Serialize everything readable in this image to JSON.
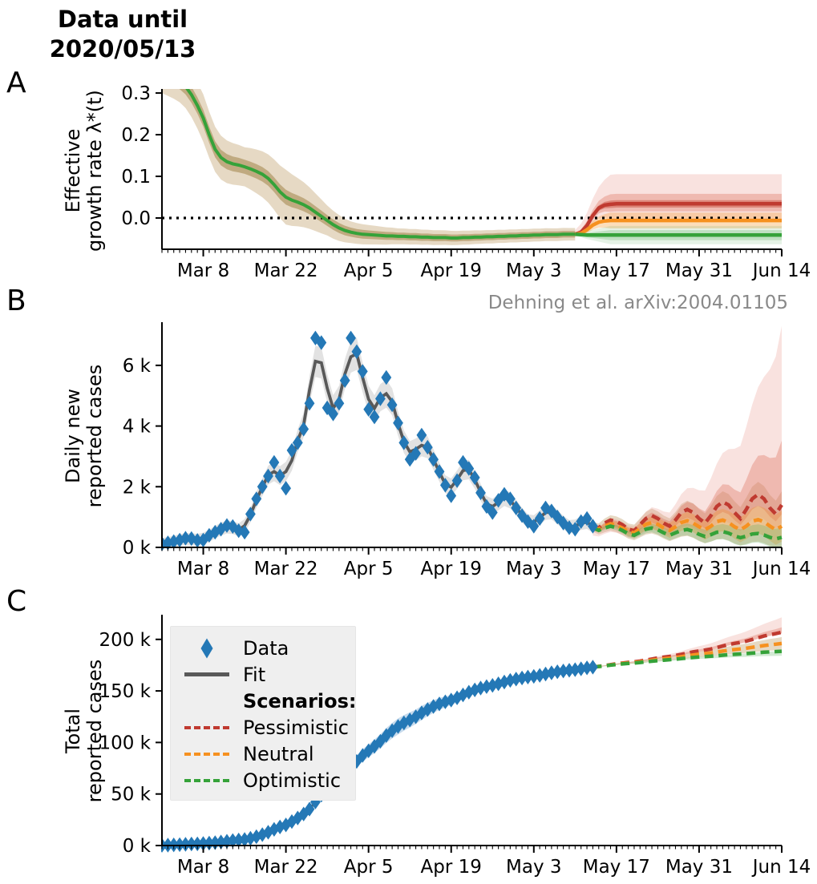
{
  "header": {
    "title_line1": "Data until",
    "title_line2": "2020/05/13"
  },
  "attribution": "Dehning et al. arXiv:2004.01105",
  "panels": {
    "a": {
      "letter": "A",
      "ylabel_line1": "Effective",
      "ylabel_line2": "growth rate λ*(t)"
    },
    "b": {
      "letter": "B",
      "ylabel_line1": "Daily new",
      "ylabel_line2": "reported cases"
    },
    "c": {
      "letter": "C",
      "ylabel_line1": "Total",
      "ylabel_line2": "reported cases"
    }
  },
  "legend": {
    "items": [
      {
        "label": "Data",
        "marker": "diamond",
        "color": "#2478b6",
        "bold": false
      },
      {
        "label": "Fit",
        "marker": "line",
        "color": "#595959",
        "bold": false
      },
      {
        "label": "Scenarios:",
        "marker": "none",
        "color": "",
        "bold": true
      },
      {
        "label": "Pessimistic",
        "marker": "dashed",
        "color": "#c03a30",
        "bold": false
      },
      {
        "label": "Neutral",
        "marker": "dashed",
        "color": "#f69120",
        "bold": false
      },
      {
        "label": "Optimistic",
        "marker": "dashed",
        "color": "#35a239",
        "bold": false
      }
    ]
  },
  "colors": {
    "data_blue": "#2478b6",
    "fit_gray": "#595959",
    "pessimistic_red": "#c03a30",
    "neutral_orange": "#f69120",
    "optimistic_green": "#35a239",
    "band_tan_outer": "rgba(205,180,138,0.50)",
    "band_tan_inner": "rgba(166,138,84,0.60)",
    "band_fit_gray": "rgba(150,150,150,0.28)",
    "band_blue_light": "rgba(130,175,215,0.45)",
    "band_red_pale": "rgba(235,160,150,0.30)",
    "band_red_mid": "rgba(220,110,90,0.35)",
    "band_red_inner": "rgba(200,70,55,0.45)",
    "band_orange": "rgba(246,145,32,0.30)",
    "band_green": "rgba(80,170,85,0.25)",
    "axis_black": "#000000"
  },
  "chart_data": [
    {
      "id": "A",
      "type": "line",
      "title": "Data until 2020/05/13",
      "ylabel": "Effective growth rate λ*(t)",
      "ylim": [
        -0.075,
        0.304
      ],
      "yticks": [
        0.0,
        0.1,
        0.2,
        0.3
      ],
      "ytick_labels": [
        "0.0",
        "0.1",
        "0.2",
        "0.3"
      ],
      "x_day0_date": "Mar 1",
      "xlim_days": [
        0,
        105
      ],
      "xticks_days": [
        7,
        21,
        35,
        49,
        63,
        77,
        91,
        105
      ],
      "xtick_labels": [
        "Mar 8",
        "Mar 22",
        "Apr 5",
        "Apr 19",
        "May 3",
        "May 17",
        "May 31",
        "Jun 14"
      ],
      "zero_line": 0.0,
      "grid": false,
      "fit_line": {
        "day_start": 0,
        "values": [
          0.345,
          0.34,
          0.335,
          0.328,
          0.316,
          0.296,
          0.27,
          0.24,
          0.2,
          0.165,
          0.145,
          0.135,
          0.13,
          0.127,
          0.123,
          0.118,
          0.112,
          0.105,
          0.095,
          0.08,
          0.063,
          0.05,
          0.043,
          0.038,
          0.032,
          0.024,
          0.014,
          0.004,
          -0.006,
          -0.016,
          -0.024,
          -0.03,
          -0.034,
          -0.037,
          -0.039,
          -0.04,
          -0.041,
          -0.042,
          -0.043,
          -0.043,
          -0.044,
          -0.044,
          -0.045,
          -0.045,
          -0.046,
          -0.046,
          -0.047,
          -0.047,
          -0.047,
          -0.048,
          -0.048,
          -0.047,
          -0.047,
          -0.046,
          -0.046,
          -0.045,
          -0.045,
          -0.044,
          -0.044,
          -0.043,
          -0.043,
          -0.042,
          -0.042,
          -0.041,
          -0.041,
          -0.04,
          -0.04,
          -0.04,
          -0.039,
          -0.039,
          -0.039
        ]
      },
      "fit_band_inner_hw": [
        [
          0,
          0.018
        ],
        [
          7,
          0.02
        ],
        [
          14,
          0.017
        ],
        [
          21,
          0.018
        ],
        [
          25,
          0.015
        ],
        [
          28,
          0.013
        ],
        [
          32,
          0.011
        ],
        [
          40,
          0.009
        ],
        [
          55,
          0.008
        ],
        [
          70,
          0.008
        ]
      ],
      "fit_band_outer_hw": [
        [
          0,
          0.045
        ],
        [
          7,
          0.057
        ],
        [
          14,
          0.047
        ],
        [
          21,
          0.066
        ],
        [
          25,
          0.05
        ],
        [
          28,
          0.036
        ],
        [
          32,
          0.026
        ],
        [
          40,
          0.019
        ],
        [
          55,
          0.016
        ],
        [
          70,
          0.015
        ]
      ],
      "scenarios": [
        {
          "name": "Pessimistic",
          "day_start": 70,
          "values": [
            -0.039,
            -0.034,
            -0.018,
            0.006,
            0.024,
            0.031,
            0.033,
            0.034,
            0.034,
            0.034,
            0.034,
            0.034,
            0.034,
            0.034,
            0.034,
            0.034,
            0.034,
            0.034,
            0.034,
            0.034,
            0.034,
            0.034,
            0.034,
            0.034,
            0.034,
            0.034,
            0.034,
            0.034,
            0.034,
            0.034,
            0.034,
            0.034,
            0.034,
            0.034,
            0.034,
            0.034
          ]
        },
        {
          "name": "Neutral",
          "day_start": 70,
          "values": [
            -0.039,
            -0.037,
            -0.028,
            -0.017,
            -0.01,
            -0.007,
            -0.006,
            -0.006,
            -0.006,
            -0.006,
            -0.006,
            -0.006,
            -0.006,
            -0.006,
            -0.006,
            -0.006,
            -0.006,
            -0.006,
            -0.006,
            -0.006,
            -0.006,
            -0.006,
            -0.006,
            -0.006,
            -0.006,
            -0.006,
            -0.006,
            -0.006,
            -0.006,
            -0.006,
            -0.006,
            -0.006,
            -0.006,
            -0.006,
            -0.006,
            -0.006
          ]
        },
        {
          "name": "Optimistic",
          "day_start": 70,
          "values": [
            -0.039,
            -0.04,
            -0.041,
            -0.041,
            -0.041,
            -0.041,
            -0.041,
            -0.041,
            -0.041,
            -0.041,
            -0.041,
            -0.041,
            -0.041,
            -0.041,
            -0.041,
            -0.041,
            -0.041,
            -0.041,
            -0.041,
            -0.041,
            -0.041,
            -0.041,
            -0.041,
            -0.041,
            -0.041,
            -0.041,
            -0.041,
            -0.041,
            -0.041,
            -0.041,
            -0.041,
            -0.041,
            -0.041,
            -0.041,
            -0.041,
            -0.041
          ]
        }
      ]
    },
    {
      "id": "B",
      "type": "scatter+line",
      "ylabel": "Daily new reported cases",
      "ylim": [
        0,
        7344
      ],
      "yticks": [
        0,
        2000,
        4000,
        6000
      ],
      "ytick_labels": [
        "0 k",
        "2 k",
        "4 k",
        "6 k"
      ],
      "xlim_days": [
        0,
        105
      ],
      "xticks_days": [
        7,
        21,
        35,
        49,
        63,
        77,
        91,
        105
      ],
      "xtick_labels": [
        "Mar 8",
        "Mar 22",
        "Apr 5",
        "Apr 19",
        "May 3",
        "May 17",
        "May 31",
        "Jun 14"
      ],
      "grid": false,
      "data_day_start": 0,
      "data": [
        120,
        150,
        190,
        240,
        300,
        290,
        230,
        240,
        400,
        500,
        600,
        720,
        690,
        550,
        500,
        1100,
        1600,
        2000,
        2350,
        2800,
        2350,
        1950,
        3200,
        3450,
        3900,
        4750,
        6900,
        6750,
        4600,
        4400,
        4750,
        5500,
        6900,
        6450,
        5800,
        4550,
        4300,
        4900,
        5600,
        4700,
        4100,
        3450,
        2900,
        3100,
        3700,
        3300,
        2900,
        2500,
        2050,
        1700,
        2200,
        2800,
        2600,
        2300,
        1800,
        1350,
        1150,
        1550,
        1750,
        1600,
        1300,
        1050,
        850,
        700,
        950,
        1300,
        1200,
        1000,
        800,
        650,
        600,
        850,
        950,
        700
      ],
      "fit_smooth_window": 3,
      "scenarios": [
        {
          "name": "Pessimistic",
          "day_start": 73,
          "values": [
            700,
            650,
            800,
            900,
            850,
            750,
            600,
            550,
            750,
            950,
            1050,
            950,
            800,
            700,
            900,
            1150,
            1250,
            1150,
            950,
            800,
            1050,
            1350,
            1500,
            1400,
            1150,
            950,
            1250,
            1600,
            1750,
            1600,
            1300,
            1100,
            1400
          ]
        },
        {
          "name": "Neutral",
          "day_start": 73,
          "values": [
            680,
            600,
            700,
            780,
            730,
            640,
            520,
            480,
            620,
            760,
            820,
            760,
            640,
            560,
            680,
            820,
            880,
            800,
            680,
            580,
            700,
            850,
            900,
            820,
            680,
            580,
            700,
            860,
            920,
            840,
            700,
            580,
            700
          ]
        },
        {
          "name": "Optimistic",
          "day_start": 73,
          "values": [
            650,
            560,
            640,
            700,
            650,
            560,
            450,
            400,
            500,
            600,
            640,
            580,
            480,
            400,
            480,
            560,
            590,
            530,
            430,
            360,
            420,
            500,
            520,
            470,
            380,
            320,
            370,
            440,
            460,
            410,
            330,
            280,
            330
          ]
        }
      ]
    },
    {
      "id": "C",
      "type": "scatter",
      "ylabel": "Total reported cases",
      "ylim": [
        0,
        221600
      ],
      "yticks": [
        0,
        50000,
        100000,
        150000,
        200000
      ],
      "ytick_labels": [
        "0 k",
        "50 k",
        "100 k",
        "150 k",
        "200 k"
      ],
      "xlim_days": [
        0,
        105
      ],
      "xticks_days": [
        7,
        21,
        35,
        49,
        63,
        77,
        91,
        105
      ],
      "xtick_labels": [
        "Mar 8",
        "Mar 22",
        "Apr 5",
        "Apr 19",
        "May 3",
        "May 17",
        "May 31",
        "Jun 14"
      ],
      "grid": false,
      "data_day_start": 0,
      "cumulative": [
        270,
        420,
        610,
        850,
        1150,
        1440,
        1670,
        1910,
        2310,
        2810,
        3410,
        4130,
        4820,
        5370,
        5870,
        6970,
        8570,
        10570,
        12920,
        15720,
        18070,
        20020,
        23220,
        26670,
        30570,
        35320,
        42220,
        48970,
        53570,
        57970,
        62720,
        68220,
        75120,
        81570,
        87370,
        91920,
        96220,
        101120,
        106720,
        111420,
        115520,
        118970,
        121870,
        124970,
        128670,
        131970,
        134870,
        137370,
        139420,
        141120,
        143320,
        146120,
        148720,
        151020,
        152820,
        154170,
        155320,
        156870,
        158620,
        160220,
        161520,
        162570,
        163420,
        164120,
        165070,
        166370,
        167570,
        168570,
        169370,
        170020,
        170620,
        171470,
        172420,
        173120
      ],
      "scenario_start_total": 173120,
      "scenario_totals_end": {
        "Pessimistic": 207020,
        "Neutral": 196000,
        "Optimistic": 188460
      }
    }
  ]
}
